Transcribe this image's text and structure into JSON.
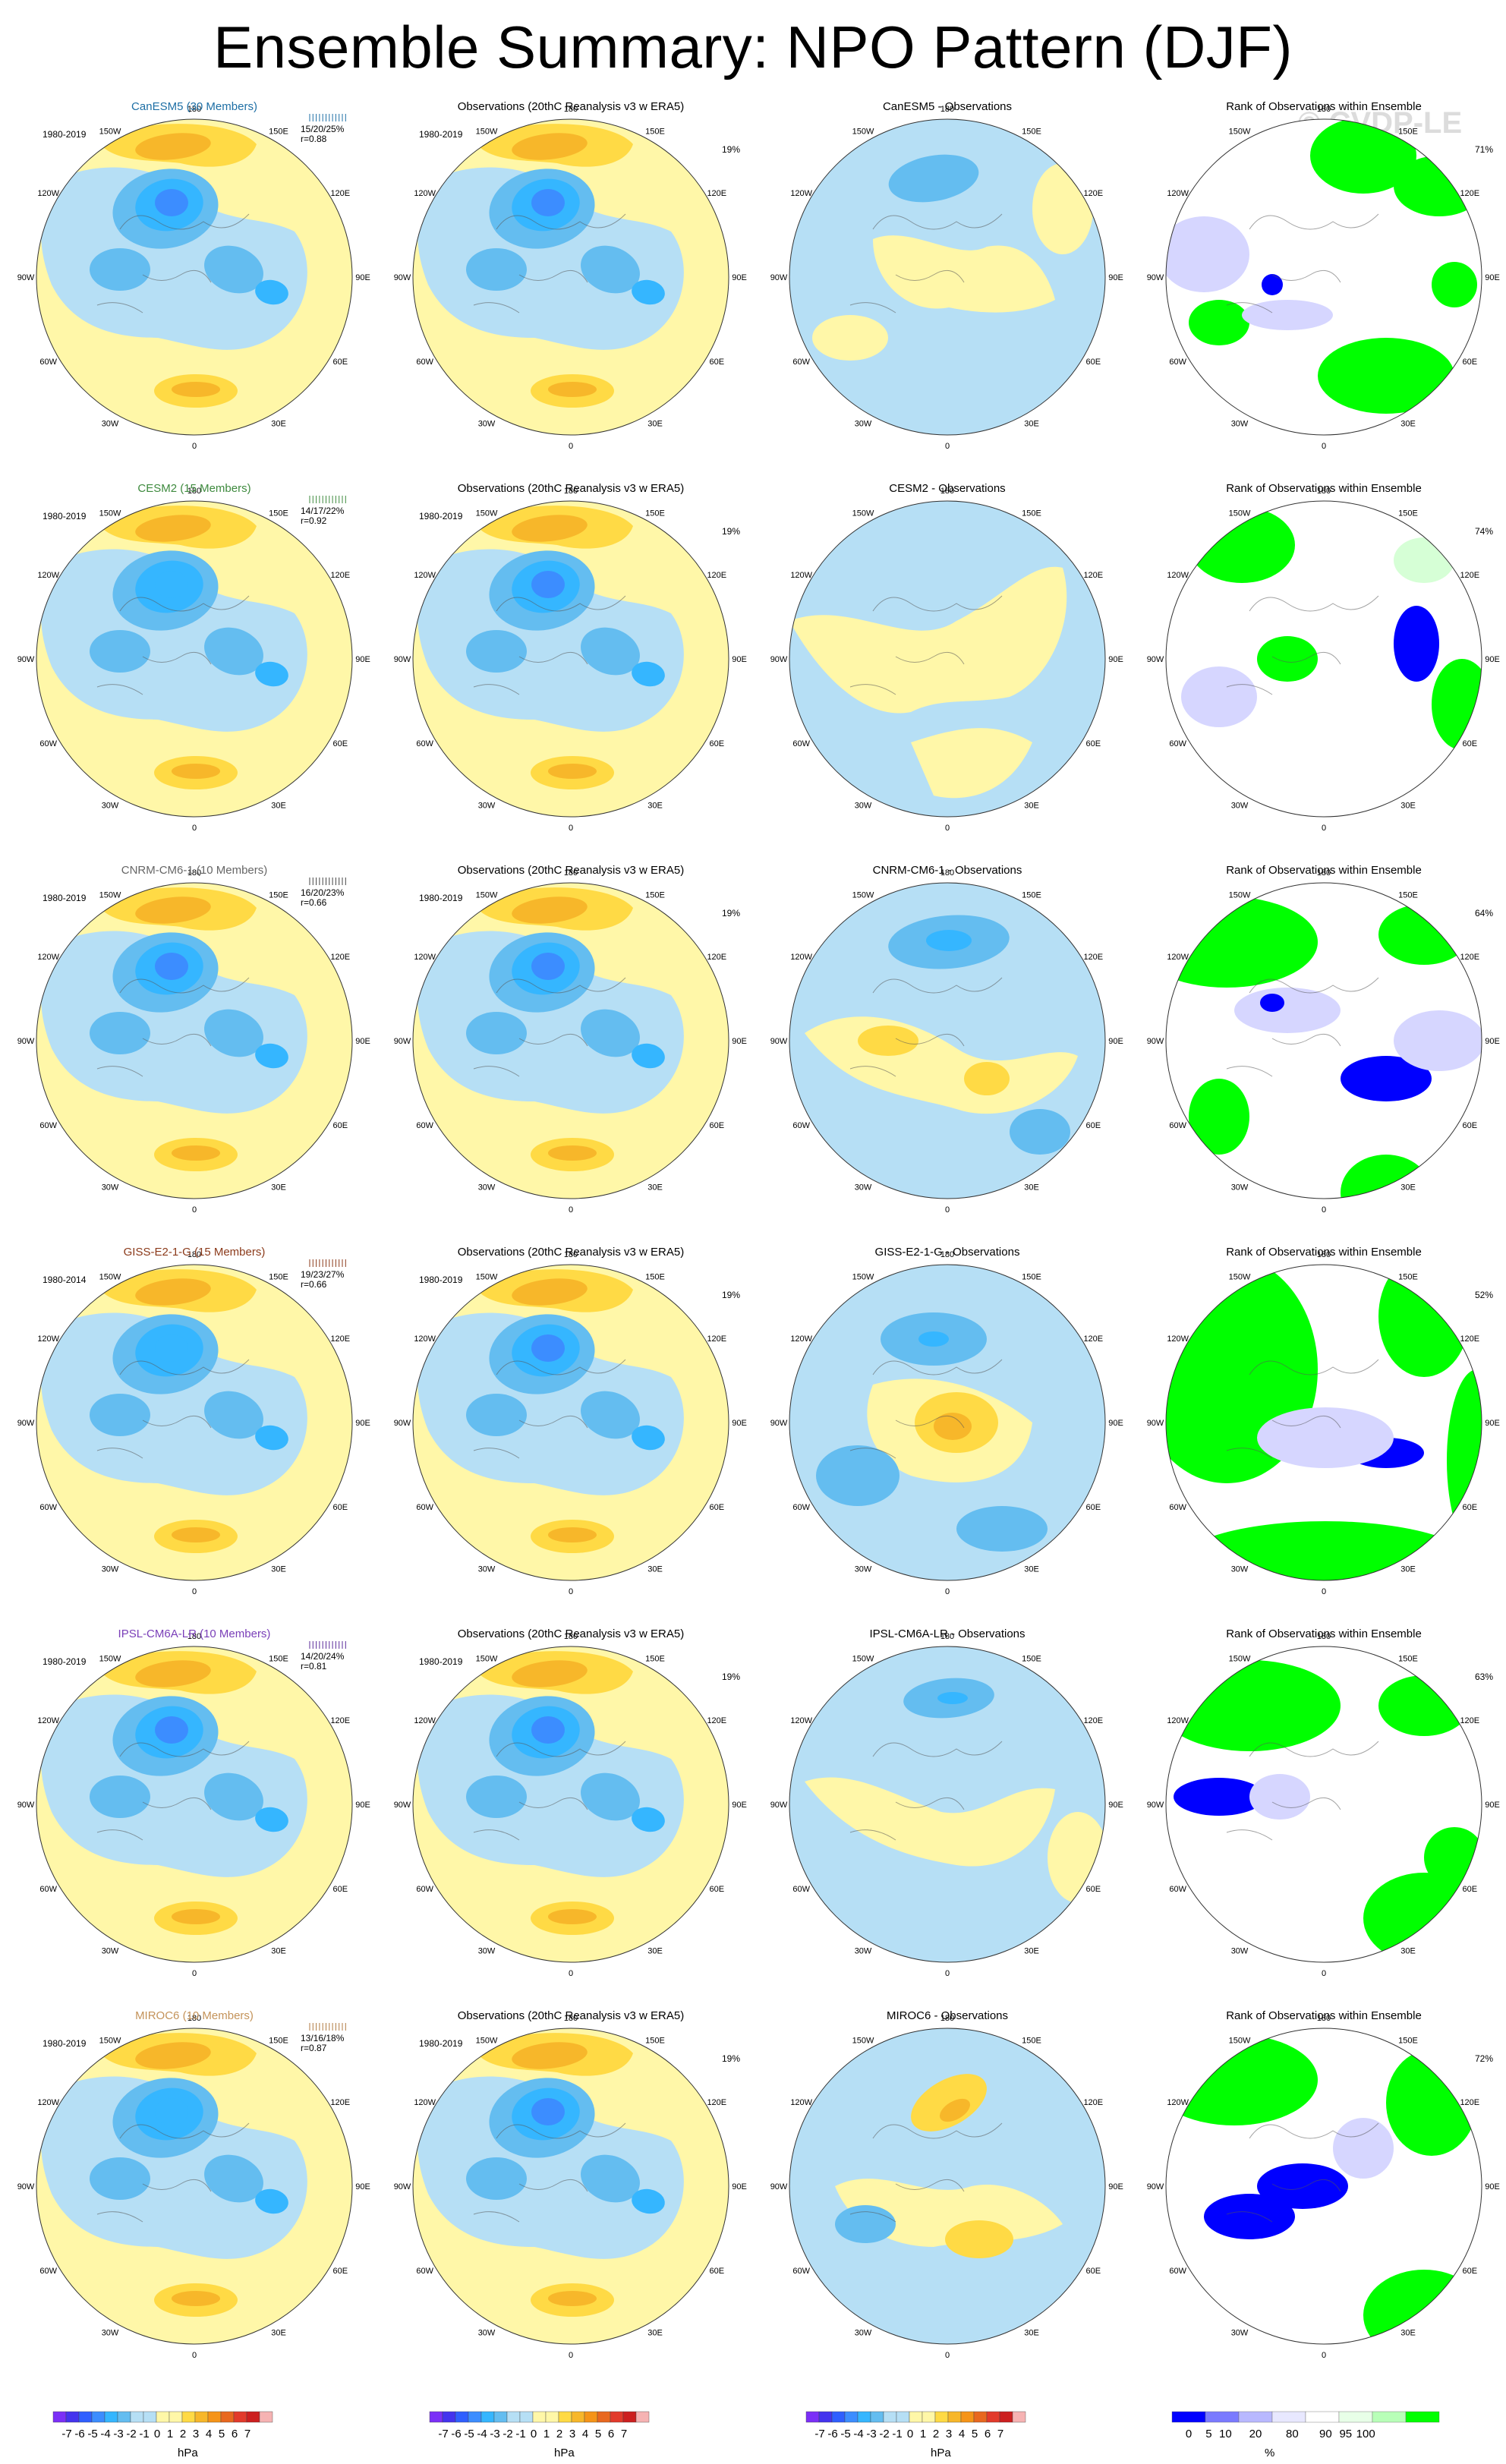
{
  "title": "Ensemble Summary: NPO Pattern (DJF)",
  "watermark": "© CVDP-LE",
  "colors": {
    "neg7": "#7b2ff7",
    "neg6": "#4433ee",
    "neg5": "#2f5fff",
    "neg4": "#3c8dff",
    "neg3": "#35b6ff",
    "neg2": "#64bdf0",
    "neg1": "#b6dff5",
    "pos1": "#fff7a8",
    "pos2": "#ffda45",
    "pos3": "#f7b72a",
    "pos4": "#f59418",
    "pos5": "#e8681f",
    "pos6": "#e23a2b",
    "pos7": "#cc1f1f",
    "pos8": "#f6b3b3",
    "rank_blue": "#0000ff",
    "rank_lightblue": "#d6d6ff",
    "rank_green": "#00ff00",
    "rank_lightgreen": "#d6ffd6"
  },
  "lon_labels": [
    "180",
    "150E",
    "120E",
    "90E",
    "60E",
    "30E",
    "0",
    "30W",
    "60W",
    "90W",
    "120W",
    "150W"
  ],
  "rows": [
    {
      "model": {
        "title": "CanESM5 (30 Members)",
        "title_color": "#1e6fa5",
        "period": "1980-2019",
        "stats": [
          "15/20/25%",
          "r=0.88"
        ],
        "tick_color": "#1e6fa5"
      },
      "obs": {
        "title": "Observations (20thC Reanalysis v3 w ERA5)",
        "period": "1980-2019",
        "pct": "19%"
      },
      "diff": {
        "title": "CanESM5 - Observations"
      },
      "rank": {
        "title": "Rank of Observations within Ensemble",
        "pct": "71%"
      }
    },
    {
      "model": {
        "title": "CESM2 (15 Members)",
        "title_color": "#3e8a3e",
        "period": "1980-2019",
        "stats": [
          "14/17/22%",
          "r=0.92"
        ],
        "tick_color": "#3e8a3e"
      },
      "obs": {
        "title": "Observations (20thC Reanalysis v3 w ERA5)",
        "period": "1980-2019",
        "pct": "19%"
      },
      "diff": {
        "title": "CESM2 - Observations"
      },
      "rank": {
        "title": "Rank of Observations within Ensemble",
        "pct": "74%"
      }
    },
    {
      "model": {
        "title": "CNRM-CM6-1 (10 Members)",
        "title_color": "#666666",
        "period": "1980-2019",
        "stats": [
          "16/20/23%",
          "r=0.66"
        ],
        "tick_color": "#444444"
      },
      "obs": {
        "title": "Observations (20thC Reanalysis v3 w ERA5)",
        "period": "1980-2019",
        "pct": "19%"
      },
      "diff": {
        "title": "CNRM-CM6-1 - Observations"
      },
      "rank": {
        "title": "Rank of Observations within Ensemble",
        "pct": "64%"
      }
    },
    {
      "model": {
        "title": "GISS-E2-1-G (15 Members)",
        "title_color": "#8b3a1a",
        "period": "1980-2014",
        "stats": [
          "19/23/27%",
          "r=0.66"
        ],
        "tick_color": "#8b3a1a"
      },
      "obs": {
        "title": "Observations (20thC Reanalysis v3 w ERA5)",
        "period": "1980-2019",
        "pct": "19%"
      },
      "diff": {
        "title": "GISS-E2-1-G - Observations"
      },
      "rank": {
        "title": "Rank of Observations within Ensemble",
        "pct": "52%"
      }
    },
    {
      "model": {
        "title": "IPSL-CM6A-LR (10 Members)",
        "title_color": "#7a3fb8",
        "period": "1980-2019",
        "stats": [
          "14/20/24%",
          "r=0.81"
        ],
        "tick_color": "#5a2a9a"
      },
      "obs": {
        "title": "Observations (20thC Reanalysis v3 w ERA5)",
        "period": "1980-2019",
        "pct": "19%"
      },
      "diff": {
        "title": "IPSL-CM6A-LR - Observations"
      },
      "rank": {
        "title": "Rank of Observations within Ensemble",
        "pct": "63%"
      }
    },
    {
      "model": {
        "title": "MIROC6 (10 Members)",
        "title_color": "#c4935a",
        "period": "1980-2019",
        "stats": [
          "13/16/18%",
          "r=0.87"
        ],
        "tick_color": "#b07a40"
      },
      "obs": {
        "title": "Observations (20thC Reanalysis v3 w ERA5)",
        "period": "1980-2019",
        "pct": "19%"
      },
      "diff": {
        "title": "MIROC6 - Observations"
      },
      "rank": {
        "title": "Rank of Observations within Ensemble",
        "pct": "72%"
      }
    }
  ],
  "colorbars": {
    "hpa": {
      "labels": [
        "-7",
        "-6",
        "-5",
        "-4",
        "-3",
        "-2",
        "-1",
        "0",
        "1",
        "2",
        "3",
        "4",
        "5",
        "6",
        "7"
      ],
      "units": "hPa"
    },
    "rank": {
      "labels": [
        "0",
        "5",
        "10",
        "20",
        "80",
        "90",
        "95",
        "100"
      ],
      "units": "%"
    }
  }
}
